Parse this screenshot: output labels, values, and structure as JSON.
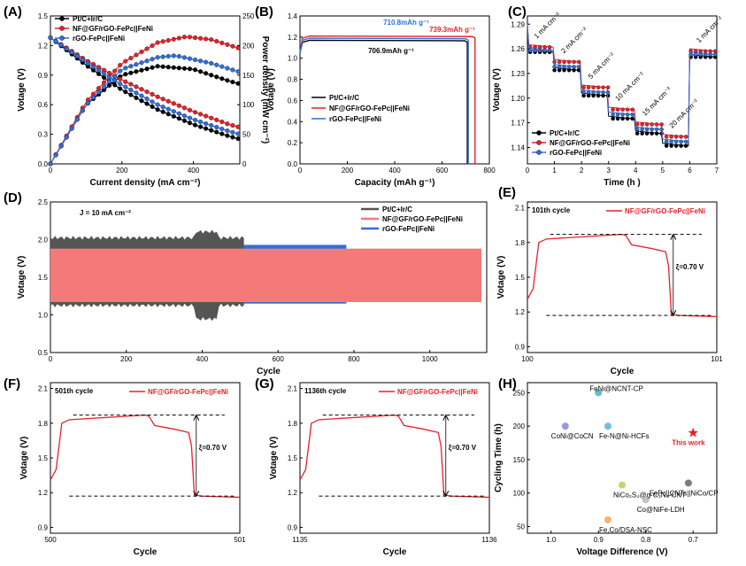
{
  "panels": {
    "A": {
      "label": "(A)"
    },
    "B": {
      "label": "(B)"
    },
    "C": {
      "label": "(C)"
    },
    "D": {
      "label": "(D)"
    },
    "E": {
      "label": "(E)"
    },
    "F": {
      "label": "(F)"
    },
    "G": {
      "label": "(G)"
    },
    "H": {
      "label": "(H)"
    }
  },
  "colors": {
    "black": "#000000",
    "red": "#e8202a",
    "blue": "#2f6fd8",
    "salmon": "#f47a7a",
    "gray": "#555555"
  },
  "chart_data": [
    {
      "id": "A",
      "type": "line",
      "xlabel": "Current density (mA cm⁻²)",
      "ylabel": "Votage (V)",
      "y2label": "Power density (mW cm⁻²)",
      "xlim": [
        0,
        530
      ],
      "ylim": [
        0,
        1.5
      ],
      "y2lim": [
        0,
        250
      ],
      "xticks": [
        0,
        200,
        400
      ],
      "yticks": [
        0.0,
        0.3,
        0.6,
        0.9,
        1.2,
        1.5
      ],
      "y2ticks": [
        0,
        50,
        100,
        150,
        200,
        250
      ],
      "legend": [
        "Pt/C+Ir/C",
        "NF@GF/rGO-FePc||FeNi",
        "rGO-FePc||FeNi"
      ],
      "series": [
        {
          "name": "Pt/C+Ir/C",
          "color": "#000000",
          "voltage": [
            [
              0,
              1.28
            ],
            [
              100,
              1.0
            ],
            [
              200,
              0.75
            ],
            [
              300,
              0.55
            ],
            [
              400,
              0.4
            ],
            [
              500,
              0.28
            ],
            [
              530,
              0.25
            ]
          ],
          "power": [
            [
              0,
              0
            ],
            [
              100,
              100
            ],
            [
              200,
              150
            ],
            [
              300,
              165
            ],
            [
              400,
              160
            ],
            [
              450,
              150
            ],
            [
              500,
              140
            ],
            [
              530,
              135
            ]
          ]
        },
        {
          "name": "NF@GF/rGO-FePc||FeNi",
          "color": "#e8202a",
          "voltage": [
            [
              0,
              1.28
            ],
            [
              100,
              1.05
            ],
            [
              200,
              0.85
            ],
            [
              300,
              0.68
            ],
            [
              400,
              0.53
            ],
            [
              500,
              0.4
            ],
            [
              530,
              0.37
            ]
          ],
          "power": [
            [
              0,
              0
            ],
            [
              100,
              105
            ],
            [
              200,
              170
            ],
            [
              300,
              205
            ],
            [
              380,
              215
            ],
            [
              450,
              210
            ],
            [
              530,
              195
            ]
          ]
        },
        {
          "name": "rGO-FePc||FeNi",
          "color": "#2f6fd8",
          "voltage": [
            [
              0,
              1.28
            ],
            [
              100,
              1.03
            ],
            [
              200,
              0.8
            ],
            [
              300,
              0.6
            ],
            [
              400,
              0.45
            ],
            [
              500,
              0.33
            ],
            [
              530,
              0.3
            ]
          ],
          "power": [
            [
              0,
              0
            ],
            [
              100,
              100
            ],
            [
              200,
              160
            ],
            [
              300,
              180
            ],
            [
              350,
              183
            ],
            [
              450,
              170
            ],
            [
              530,
              155
            ]
          ]
        }
      ]
    },
    {
      "id": "B",
      "type": "line",
      "xlabel": "Capacity (mAh g⁻¹)",
      "ylabel": "Votage (V)",
      "xlim": [
        0,
        800
      ],
      "ylim": [
        0,
        1.4
      ],
      "xticks": [
        0,
        200,
        400,
        600,
        800
      ],
      "yticks": [
        0.0,
        0.2,
        0.4,
        0.6,
        0.8,
        1.0,
        1.2,
        1.4
      ],
      "legend": [
        "Pt/C+Ir/C",
        "NF@GF/rGO-FePc||FeNi",
        "rGO-FePc||FeNi"
      ],
      "annotations": [
        {
          "text": "710.8mAh g⁻¹",
          "color": "#2f6fd8"
        },
        {
          "text": "739.3mAh g⁻¹",
          "color": "#e8202a"
        },
        {
          "text": "706.9mAh g⁻¹",
          "color": "#000000"
        }
      ],
      "series": [
        {
          "name": "Pt/C+Ir/C",
          "color": "#000000",
          "capacity": 706.9,
          "plateau": 1.17
        },
        {
          "name": "NF@GF/rGO-FePc||FeNi",
          "color": "#e8202a",
          "capacity": 739.3,
          "plateau": 1.21
        },
        {
          "name": "rGO-FePc||FeNi",
          "color": "#2f6fd8",
          "capacity": 710.8,
          "plateau": 1.19
        }
      ]
    },
    {
      "id": "C",
      "type": "line",
      "xlabel": "Time (h )",
      "ylabel": "Votage (V)",
      "xlim": [
        0,
        7
      ],
      "ylim": [
        1.12,
        1.3
      ],
      "xticks": [
        0,
        1,
        2,
        3,
        4,
        5,
        6,
        7
      ],
      "yticks": [
        1.14,
        1.17,
        1.2,
        1.23,
        1.26,
        1.29
      ],
      "legend": [
        "Pt/C+Ir/C",
        "NF@GF/rGO-FePc||FeNi",
        "rGO-FePc||FeNi"
      ],
      "step_labels": [
        "1 mA cm⁻²",
        "2 mA cm⁻²",
        "5 mA cm⁻²",
        "10 mA cm⁻²",
        "15 mA cm⁻²",
        "20 mA cm⁻²",
        "1 mA cm⁻²"
      ],
      "series": [
        {
          "name": "Pt/C+Ir/C",
          "color": "#000000",
          "levels": [
            1.256,
            1.234,
            1.203,
            1.175,
            1.157,
            1.142,
            1.25
          ]
        },
        {
          "name": "NF@GF/rGO-FePc||FeNi",
          "color": "#e8202a",
          "levels": [
            1.262,
            1.244,
            1.213,
            1.186,
            1.168,
            1.153,
            1.257
          ]
        },
        {
          "name": "rGO-FePc||FeNi",
          "color": "#2f6fd8",
          "levels": [
            1.258,
            1.238,
            1.207,
            1.18,
            1.162,
            1.147,
            1.253
          ]
        }
      ]
    },
    {
      "id": "D",
      "type": "area",
      "xlabel": "Cycle",
      "ylabel": "Votage (V)",
      "xlim": [
        0,
        1150
      ],
      "ylim": [
        0.5,
        2.5
      ],
      "xticks": [
        0,
        200,
        400,
        600,
        800,
        1000
      ],
      "yticks": [
        0.5,
        1.0,
        1.5,
        2.0,
        2.5
      ],
      "note": "J = 10 mA cm⁻²",
      "legend": [
        "Pt/C+Ir/C",
        "NF@GF/rGO-FePc||FeNi",
        "rGO-FePc||FeNi"
      ],
      "series": [
        {
          "name": "Pt/C+Ir/C",
          "color": "#555555",
          "cycles": 510,
          "upper": 2.0,
          "lower": 1.15
        },
        {
          "name": "NF@GF/rGO-FePc||FeNi",
          "color": "#f47a7a",
          "cycles": 1136,
          "upper": 1.88,
          "lower": 1.17
        },
        {
          "name": "rGO-FePc||FeNi",
          "color": "#2f6fd8",
          "cycles": 780,
          "upper": 1.93,
          "lower": 1.15
        }
      ]
    },
    {
      "id": "E",
      "type": "line",
      "title": "101th cycle",
      "legend": [
        "NF@GF/rGO-FePc||FeNi"
      ],
      "xlabel": "Cycle",
      "ylabel": "Votage (V)",
      "xlim": [
        100,
        101
      ],
      "ylim": [
        0.85,
        2.15
      ],
      "xticks": [
        100,
        101
      ],
      "yticks": [
        0.9,
        1.2,
        1.5,
        1.8,
        2.1
      ],
      "gap_label": "ξ=0.70 V",
      "charge": 1.87,
      "discharge": 1.17
    },
    {
      "id": "F",
      "type": "line",
      "title": "501th cycle",
      "legend": [
        "NF@GF/rGO-FePc||FeNi"
      ],
      "xlabel": "Cycle",
      "ylabel": "Votage (V)",
      "xlim": [
        500,
        501
      ],
      "ylim": [
        0.85,
        2.15
      ],
      "xticks": [
        500,
        501
      ],
      "yticks": [
        0.9,
        1.2,
        1.5,
        1.8,
        2.1
      ],
      "gap_label": "ξ=0.70 V",
      "charge": 1.87,
      "discharge": 1.17
    },
    {
      "id": "G",
      "type": "line",
      "title": "1136th cycle",
      "legend": [
        "NF@GF/rGO-FePc||FeNi"
      ],
      "xlabel": "Cycle",
      "ylabel": "Votage (V)",
      "xlim": [
        1135,
        1136
      ],
      "ylim": [
        0.85,
        2.15
      ],
      "xticks": [
        1135,
        1136
      ],
      "yticks": [
        0.9,
        1.2,
        1.5,
        1.8,
        2.1
      ],
      "gap_label": "ξ=0.70 V",
      "charge": 1.87,
      "discharge": 1.17
    },
    {
      "id": "H",
      "type": "scatter",
      "xlabel": "Voltage Difference (V)",
      "ylabel": "Cycling Time (h)",
      "xlim": [
        1.05,
        0.65
      ],
      "ylim": [
        40,
        265
      ],
      "xticks": [
        1.0,
        0.9,
        0.8,
        0.7
      ],
      "yticks": [
        50,
        100,
        150,
        200,
        250
      ],
      "points": [
        {
          "label": "FeNi@NCNT-CP",
          "x": 0.9,
          "y": 250,
          "color": "#1aa9b8"
        },
        {
          "label": "CoNi@CoCN",
          "x": 0.97,
          "y": 200,
          "color": "#6b6fd6"
        },
        {
          "label": "Fe-N@Ni-HCFs",
          "x": 0.88,
          "y": 200,
          "color": "#3fa0d8"
        },
        {
          "label": "This work",
          "x": 0.7,
          "y": 190,
          "color": "#e8202a"
        },
        {
          "label": "FePc||CNTs||NiCo/CP",
          "x": 0.71,
          "y": 115,
          "color": "#444444"
        },
        {
          "label": "NiCo₂S₄@g-C₃N₄-CNT",
          "x": 0.85,
          "y": 112,
          "color": "#9dc83c"
        },
        {
          "label": "Co@NiFe-LDH",
          "x": 0.8,
          "y": 90,
          "color": "#aaaaaa"
        },
        {
          "label": "Fe,Co/DSA-NSC",
          "x": 0.88,
          "y": 60,
          "color": "#f0943a"
        }
      ]
    }
  ]
}
